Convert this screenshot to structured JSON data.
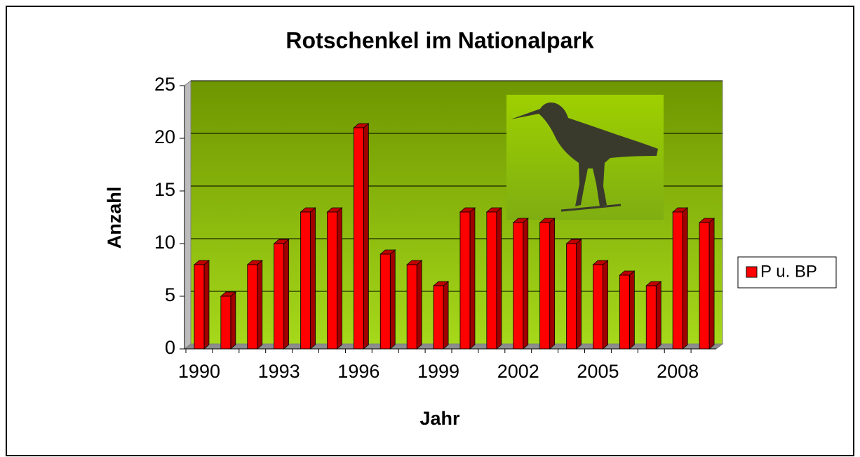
{
  "chart_data": {
    "type": "bar",
    "title": "Rotschenkel im Nationalpark",
    "x_label": "Jahr",
    "y_label": "Anzahl",
    "categories": [
      "1990",
      null,
      null,
      "1993",
      null,
      null,
      "1996",
      null,
      null,
      "1999",
      null,
      null,
      "2002",
      null,
      null,
      "2005",
      null,
      null,
      "2008",
      null
    ],
    "series": [
      {
        "name": "P u. BP",
        "color": "#ff0000",
        "values": [
          8,
          5,
          8,
          10,
          13,
          13,
          21,
          9,
          8,
          6,
          13,
          13,
          12,
          12,
          10,
          8,
          7,
          6,
          13,
          12
        ]
      }
    ],
    "ylim": [
      0,
      25
    ],
    "yticks": [
      0,
      5,
      10,
      15,
      20,
      25
    ],
    "grid": true,
    "legend": "right"
  }
}
